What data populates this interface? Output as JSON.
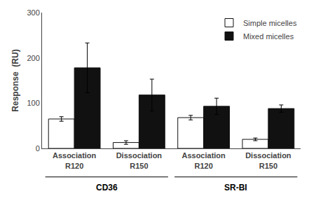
{
  "chart_data": {
    "type": "bar",
    "ylabel": "Response  (RU)",
    "categories": [
      "Association\nR120",
      "Dissociation\nR150",
      "Association\nR120",
      "Dissociation\nR150"
    ],
    "group_labels": [
      "CD36",
      "CD36",
      "SR-BI",
      "SR-BI"
    ],
    "series": [
      {
        "name": "Simple micelles",
        "color": "#ffffff",
        "values": [
          65,
          13,
          68,
          20
        ],
        "errors": [
          5,
          4,
          5,
          3
        ]
      },
      {
        "name": "Mixed micelles",
        "color": "#111111",
        "values": [
          178,
          118,
          93,
          88
        ],
        "errors": [
          55,
          35,
          18,
          8
        ]
      }
    ],
    "ylim": [
      0,
      300
    ],
    "yticks": [
      0,
      100,
      200,
      300
    ],
    "grid": false,
    "legend": "upper right"
  }
}
